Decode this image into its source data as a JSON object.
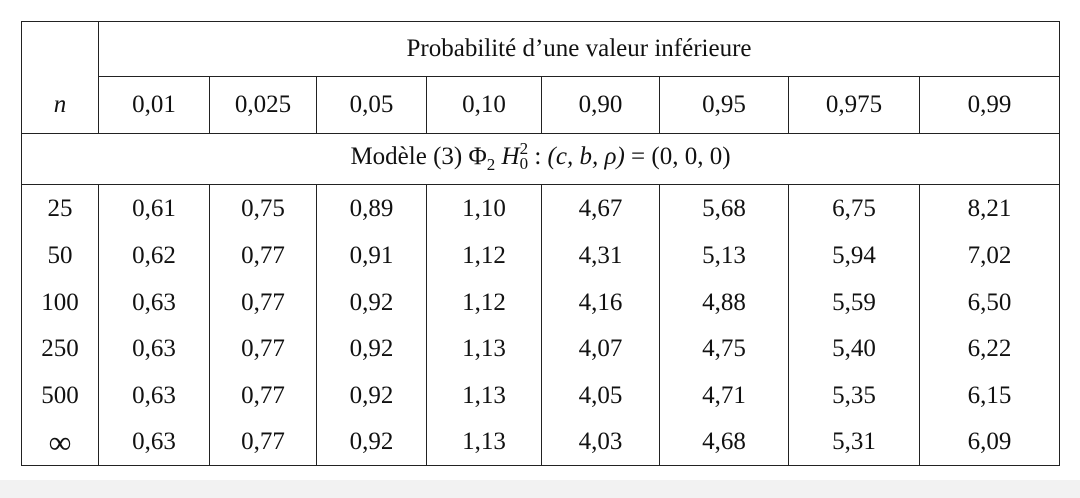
{
  "table": {
    "header_title": "Probabilité d’une valeur inférieure",
    "n_label": "n",
    "alpha_levels": [
      "0,01",
      "0,025",
      "0,05",
      "0,10",
      "0,90",
      "0,95",
      "0,975",
      "0,99"
    ],
    "model": {
      "prefix": "Modèle (3)",
      "phi": "Φ",
      "phi_sub": "2",
      "h": "H",
      "h_sup": "2",
      "h_sub": "0",
      "colon": ":",
      "params": "(c, b, ρ)",
      "equals": "=",
      "values": "(0, 0, 0)"
    },
    "rows": [
      {
        "n": "25",
        "values": [
          "0,61",
          "0,75",
          "0,89",
          "1,10",
          "4,67",
          "5,68",
          "6,75",
          "8,21"
        ]
      },
      {
        "n": "50",
        "values": [
          "0,62",
          "0,77",
          "0,91",
          "1,12",
          "4,31",
          "5,13",
          "5,94",
          "7,02"
        ]
      },
      {
        "n": "100",
        "values": [
          "0,63",
          "0,77",
          "0,92",
          "1,12",
          "4,16",
          "4,88",
          "5,59",
          "6,50"
        ]
      },
      {
        "n": "250",
        "values": [
          "0,63",
          "0,77",
          "0,92",
          "1,13",
          "4,07",
          "4,75",
          "5,40",
          "6,22"
        ]
      },
      {
        "n": "500",
        "values": [
          "0,63",
          "0,77",
          "0,92",
          "1,13",
          "4,05",
          "4,71",
          "5,35",
          "6,15"
        ]
      },
      {
        "n": "∞",
        "values": [
          "0,63",
          "0,77",
          "0,92",
          "1,13",
          "4,03",
          "4,68",
          "5,31",
          "6,09"
        ]
      }
    ]
  }
}
